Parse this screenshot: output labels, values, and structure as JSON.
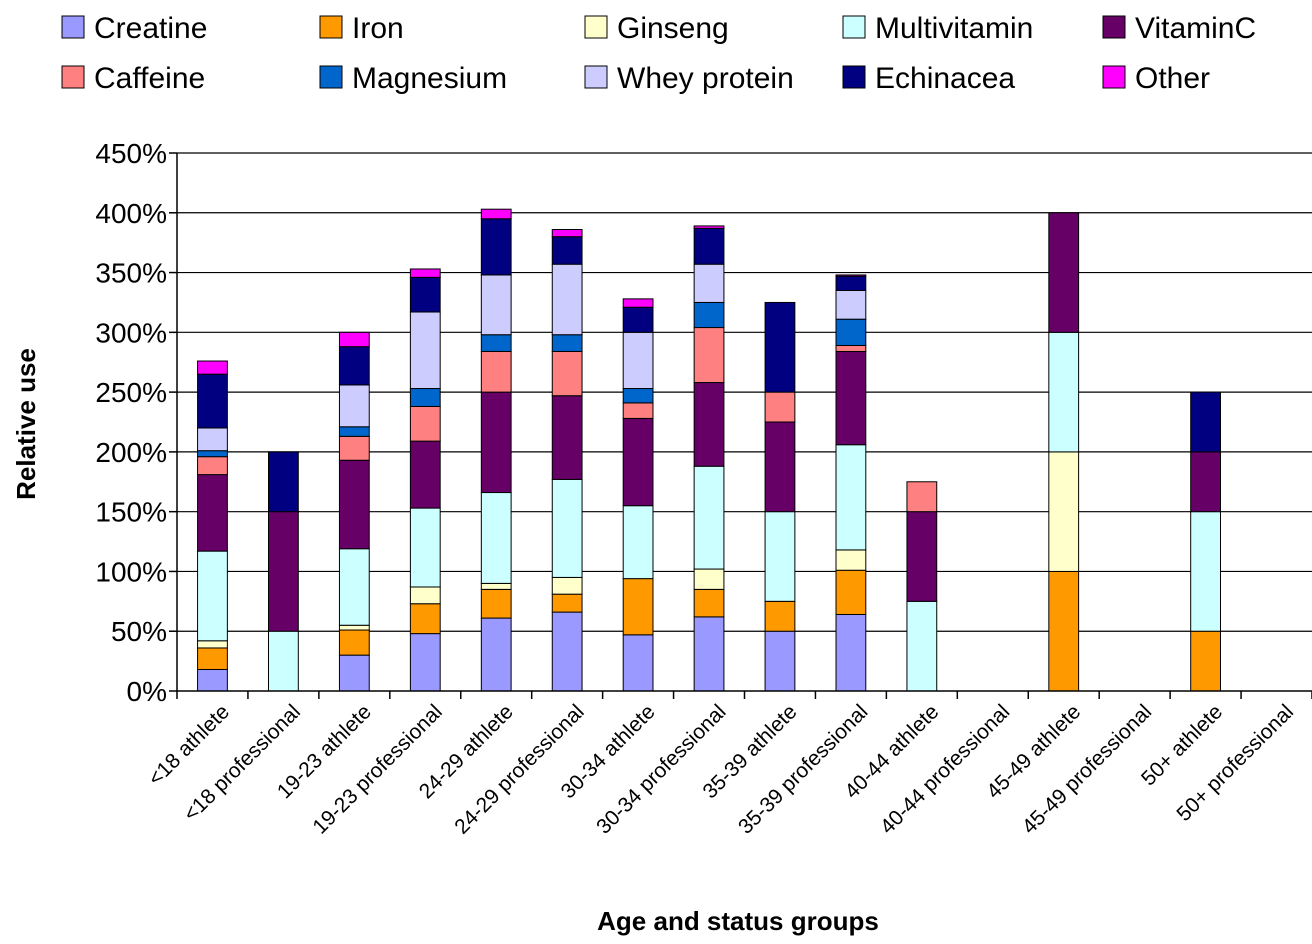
{
  "chart_data": {
    "type": "bar",
    "stacked": true,
    "title": "",
    "xlabel": "Age and status groups",
    "ylabel": "Relative use",
    "ylim": [
      0,
      450
    ],
    "yticks": [
      "0%",
      "50%",
      "100%",
      "150%",
      "200%",
      "250%",
      "300%",
      "350%",
      "400%",
      "450%"
    ],
    "grid": true,
    "legend_position": "top",
    "categories": [
      "<18 athlete",
      "<18 professional",
      "19-23 athlete",
      "19-23 professional",
      "24-29 athlete",
      "24-29 professional",
      "30-34 athlete",
      "30-34 professional",
      "35-39 athlete",
      "35-39 professional",
      "40-44 athlete",
      "40-44 professional",
      "45-49 athlete",
      "45-49 professional",
      "50+ athlete",
      "50+ professional"
    ],
    "series": [
      {
        "name": "Creatine",
        "color": "#9999ff",
        "values": [
          18,
          0,
          30,
          48,
          61,
          66,
          47,
          62,
          50,
          64,
          0,
          0,
          0,
          0,
          0,
          0
        ]
      },
      {
        "name": "Iron",
        "color": "#ff9900",
        "values": [
          18,
          0,
          21,
          25,
          24,
          15,
          47,
          23,
          25,
          37,
          0,
          0,
          100,
          0,
          50,
          0
        ]
      },
      {
        "name": "Ginseng",
        "color": "#ffffcc",
        "values": [
          6,
          0,
          4,
          14,
          5,
          14,
          0,
          17,
          0,
          17,
          0,
          0,
          100,
          0,
          0,
          0
        ]
      },
      {
        "name": "Multivitamin",
        "color": "#ccffff",
        "values": [
          75,
          50,
          64,
          66,
          76,
          82,
          61,
          86,
          75,
          88,
          75,
          0,
          100,
          0,
          100,
          0
        ]
      },
      {
        "name": "VitaminC",
        "color": "#660066",
        "values": [
          64,
          100,
          74,
          56,
          84,
          70,
          73,
          70,
          75,
          78,
          75,
          0,
          100,
          0,
          50,
          0
        ]
      },
      {
        "name": "Caffeine",
        "color": "#ff8080",
        "values": [
          15,
          0,
          20,
          29,
          34,
          37,
          13,
          46,
          25,
          5,
          25,
          0,
          0,
          0,
          0,
          0
        ]
      },
      {
        "name": "Magnesium",
        "color": "#0066cc",
        "values": [
          5,
          0,
          8,
          15,
          14,
          14,
          12,
          21,
          0,
          22,
          0,
          0,
          0,
          0,
          0,
          0
        ]
      },
      {
        "name": "Whey protein",
        "color": "#ccccff",
        "values": [
          19,
          0,
          35,
          64,
          50,
          59,
          47,
          32,
          0,
          24,
          0,
          0,
          0,
          0,
          0,
          0
        ]
      },
      {
        "name": "Echinacea",
        "color": "#000080",
        "values": [
          45,
          50,
          32,
          29,
          47,
          23,
          21,
          30,
          75,
          12,
          0,
          0,
          0,
          0,
          50,
          0
        ]
      },
      {
        "name": "Other",
        "color": "#ff00ff",
        "values": [
          11,
          0,
          12,
          7,
          8,
          6,
          7,
          2,
          0,
          1,
          0,
          0,
          0,
          0,
          0,
          0
        ]
      }
    ]
  }
}
